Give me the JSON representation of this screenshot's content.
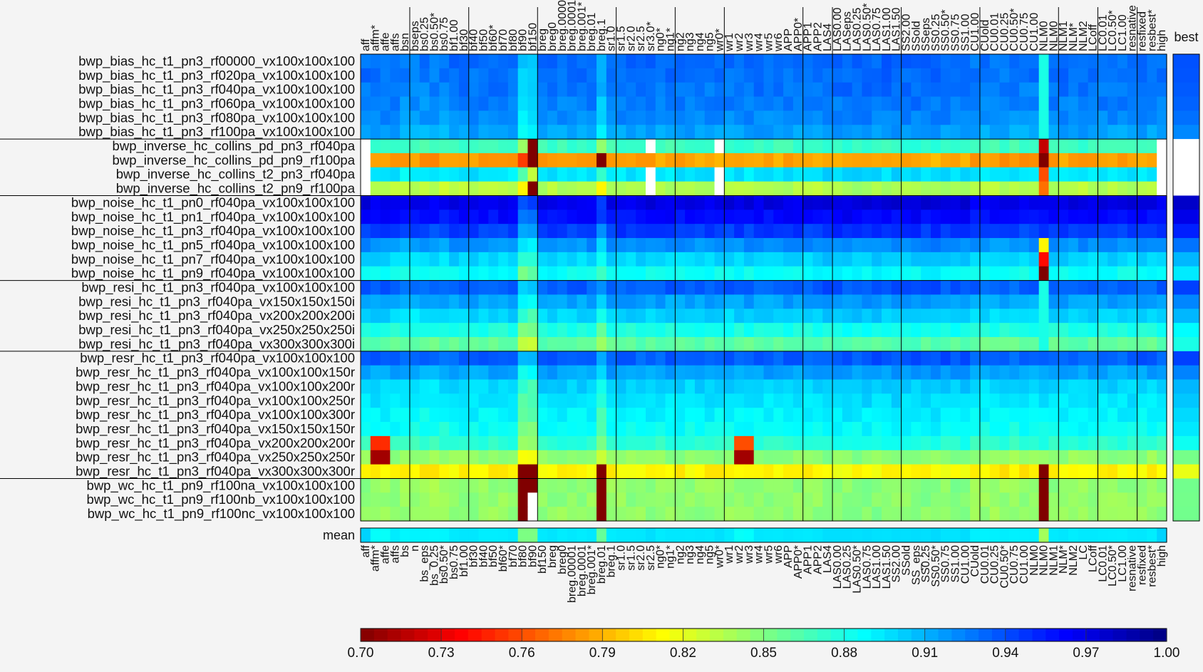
{
  "chart_data": {
    "type": "heatmap",
    "title": "",
    "columns": [
      "aff",
      "affm*",
      "affe",
      "affs",
      "bsn",
      "bseps",
      "bs0.25",
      "bs0.50*",
      "bs0.75",
      "bf1.00",
      "bf30",
      "bf40",
      "bf50",
      "bf60*",
      "bf70",
      "bf80",
      "bf90",
      "bf150",
      "breg",
      "breg0",
      "breg.00001",
      "breg.0001",
      "breg.001*",
      "breg.01",
      "breg.1",
      "sr1.0",
      "sr1.5",
      "sr2.0",
      "sr2.5",
      "sr3.0*",
      "ng0*",
      "ng1*",
      "ng2",
      "ng3",
      "ng4",
      "ng5",
      "wr0*",
      "wr1",
      "wr2",
      "wr3",
      "wr4",
      "wr5",
      "wr6",
      "APP",
      "APP0*",
      "APP1",
      "APP2",
      "LAS4",
      "LAS0.00",
      "LASeps",
      "LAS0.25",
      "LAS0.50*",
      "LAS0.75",
      "LAS1.00",
      "LAS1.50",
      "SS2.00",
      "SSold",
      "SSeps",
      "SS0.25",
      "SS0.50*",
      "SS0.75",
      "SS1.00",
      "CU1.00",
      "CUold",
      "CU0.01",
      "CU0.25",
      "CU0.50*",
      "CU0.75",
      "CU1.00",
      "NLM0",
      "NLM0",
      "NLM1",
      "NLM*",
      "NLM2",
      "LCoff",
      "LC0.01",
      "LC0.50*",
      "LC1.00",
      "resnative",
      "resfixed",
      "resbest*",
      "high"
    ],
    "bottom_labels": [
      "aff",
      "affm*",
      "affe",
      "affs",
      "bs",
      "n",
      "bs_eps",
      "bs_0.25",
      "bs0.50*",
      "bs0.75",
      "bf1.00",
      "bf30",
      "bf40",
      "bf50",
      "bf60*",
      "bf70",
      "bf80",
      "bf90",
      "bf150",
      "breg",
      "breg0",
      "breg.00001",
      "breg.0001",
      "breg.001*",
      "breg.01",
      "breg.1",
      "sr1.0",
      "sr1.5",
      "sr2.0",
      "sr2.5",
      "ng0*",
      "ng1*",
      "ng2",
      "ng3",
      "ng4",
      "ng5",
      "wr0*",
      "wr1",
      "wr2",
      "wr3",
      "wr4",
      "wr5",
      "wr6",
      "APP",
      "APP0*",
      "APP1",
      "APP2",
      "LAS4",
      "LAS0.00",
      "LAS0.25",
      "LAS0.50*",
      "LAS0.75",
      "LAS1.00",
      "LAS1.50",
      "SS2.00",
      "SSold",
      "SS_eps",
      "SS0.25",
      "SS0.50*",
      "SS0.75",
      "SS1.00",
      "CU1.00",
      "CUold",
      "CU0.01",
      "CU0.25",
      "CU0.50*",
      "CU0.75",
      "CU1.00",
      "NLM0",
      "NLM0",
      "NLM1",
      "NLM*",
      "NLM2",
      "LC",
      "LCoff",
      "LC0.01",
      "LC0.50*",
      "LC1.00",
      "resnative",
      "resfixed",
      "resbest*",
      "high"
    ],
    "rows": [
      "bwp_bias_hc_t1_pn3_rf00000_vx100x100x100",
      "bwp_bias_hc_t1_pn3_rf020pa_vx100x100x100",
      "bwp_bias_hc_t1_pn3_rf040pa_vx100x100x100",
      "bwp_bias_hc_t1_pn3_rf060pa_vx100x100x100",
      "bwp_bias_hc_t1_pn3_rf080pa_vx100x100x100",
      "bwp_bias_hc_t1_pn3_rf100pa_vx100x100x100",
      "bwp_inverse_hc_collins_pd_pn3_rf040pa",
      "bwp_inverse_hc_collins_pd_pn9_rf100pa",
      "bwp_inverse_hc_collins_t2_pn3_rf040pa",
      "bwp_inverse_hc_collins_t2_pn9_rf100pa",
      "bwp_noise_hc_t1_pn0_rf040pa_vx100x100x100",
      "bwp_noise_hc_t1_pn1_rf040pa_vx100x100x100",
      "bwp_noise_hc_t1_pn3_rf040pa_vx100x100x100",
      "bwp_noise_hc_t1_pn5_rf040pa_vx100x100x100",
      "bwp_noise_hc_t1_pn7_rf040pa_vx100x100x100",
      "bwp_noise_hc_t1_pn9_rf040pa_vx100x100x100",
      "bwp_resi_hc_t1_pn3_rf040pa_vx100x100x100",
      "bwp_resi_hc_t1_pn3_rf040pa_vx150x150x150i",
      "bwp_resi_hc_t1_pn3_rf040pa_vx200x200x200i",
      "bwp_resi_hc_t1_pn3_rf040pa_vx250x250x250i",
      "bwp_resi_hc_t1_pn3_rf040pa_vx300x300x300i",
      "bwp_resr_hc_t1_pn3_rf040pa_vx100x100x100",
      "bwp_resr_hc_t1_pn3_rf040pa_vx100x100x150r",
      "bwp_resr_hc_t1_pn3_rf040pa_vx100x100x200r",
      "bwp_resr_hc_t1_pn3_rf040pa_vx100x100x250r",
      "bwp_resr_hc_t1_pn3_rf040pa_vx100x100x300r",
      "bwp_resr_hc_t1_pn3_rf040pa_vx150x150x150r",
      "bwp_resr_hc_t1_pn3_rf040pa_vx200x200x200r",
      "bwp_resr_hc_t1_pn3_rf040pa_vx250x250x250r",
      "bwp_resr_hc_t1_pn3_rf040pa_vx300x300x300r",
      "bwp_wc_hc_t1_pn9_rf100na_vx100x100x100",
      "bwp_wc_hc_t1_pn9_rf100nb_vx100x100x100",
      "bwp_wc_hc_t1_pn9_rf100nc_vx100x100x100"
    ],
    "row_groups": [
      6,
      4,
      6,
      5,
      9,
      3
    ],
    "column_groups": [
      5,
      6,
      7,
      8,
      6,
      5,
      8,
      3,
      7,
      8,
      8,
      4,
      4,
      2
    ],
    "row_base": [
      0.931,
      0.93,
      0.928,
      0.925,
      0.922,
      0.915,
      0.87,
      0.785,
      0.895,
      0.835,
      0.97,
      0.96,
      0.945,
      0.92,
      0.9,
      0.885,
      0.935,
      0.915,
      0.9,
      0.88,
      0.86,
      0.935,
      0.915,
      0.9,
      0.895,
      0.89,
      0.885,
      0.875,
      0.845,
      0.81,
      0.845,
      0.845,
      0.845
    ],
    "mean_label": "mean",
    "best_label": "best",
    "colorbar": {
      "min": 0.7,
      "max": 1.0,
      "ticks": [
        "0.70",
        "0.73",
        "0.76",
        "0.79",
        "0.82",
        "0.85",
        "0.88",
        "0.91",
        "0.94",
        "0.97",
        "1.00"
      ],
      "colormap": "jet"
    },
    "legend": "none",
    "grid": false
  }
}
